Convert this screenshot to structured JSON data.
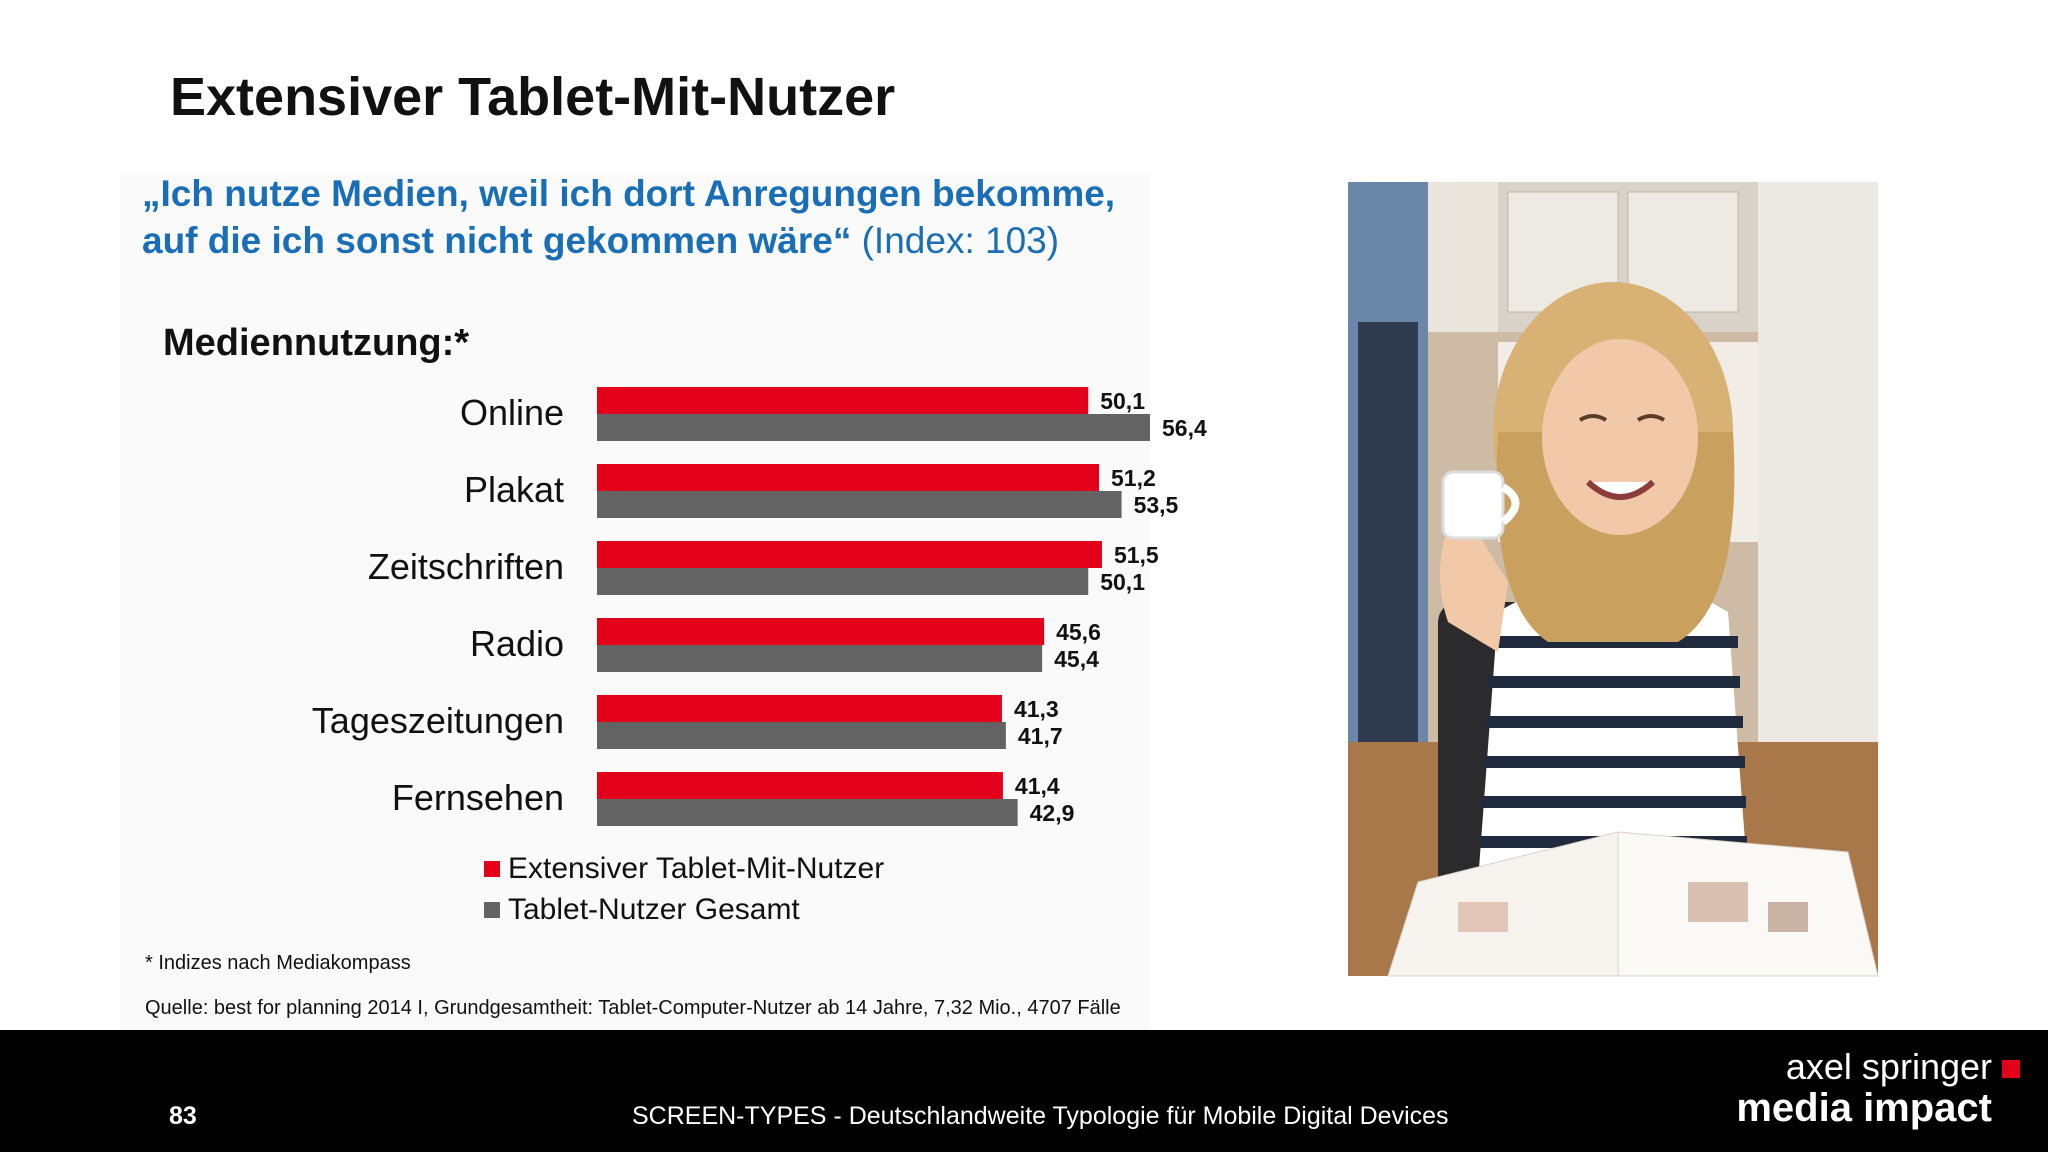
{
  "slide": {
    "title": "Extensiver Tablet-Mit-Nutzer",
    "quote_bold": "„Ich nutze Medien, weil ich dort Anregungen bekomme, auf die ich sonst nicht gekommen wäre“",
    "quote_bold_line1": "„Ich nutze Medien, weil ich dort Anregungen bekomme,",
    "quote_bold_line2": "auf die ich sonst nicht gekommen wäre“",
    "quote_index": "(Index: 103)",
    "section_title": "Mediennutzung:*",
    "footnote": "* Indizes nach Mediakompass",
    "source": "Quelle: best for planning 2014 I, Grundgesamtheit: Tablet-Computer-Nutzer ab 14 Jahre, 7,32 Mio., 4707 Fälle"
  },
  "footer": {
    "page_number": "83",
    "text": "SCREEN-TYPES - Deutschlandweite Typologie für Mobile Digital Devices",
    "logo_line1": "axel springer",
    "logo_line2": "media impact"
  },
  "colors": {
    "series1": "#e2001a",
    "series2": "#636363",
    "quote": "#1a6eb5",
    "footer_bg": "#000000"
  },
  "photo": {
    "description_icon": "photo-woman-reading-icon"
  },
  "chart_data": {
    "type": "bar",
    "orientation": "horizontal",
    "categories": [
      "Online",
      "Plakat",
      "Zeitschriften",
      "Radio",
      "Tageszeitungen",
      "Fernsehen"
    ],
    "series": [
      {
        "name": "Extensiver Tablet-Mit-Nutzer",
        "values": [
          50.1,
          51.2,
          51.5,
          45.6,
          41.3,
          41.4
        ],
        "labels": [
          "50,1",
          "51,2",
          "51,5",
          "45,6",
          "41,3",
          "41,4"
        ]
      },
      {
        "name": "Tablet-Nutzer Gesamt",
        "values": [
          56.4,
          53.5,
          50.1,
          45.4,
          41.7,
          42.9
        ],
        "labels": [
          "56,4",
          "53,5",
          "50,1",
          "45,4",
          "41,7",
          "42,9"
        ]
      }
    ],
    "xlim": [
      0,
      56.4
    ],
    "grid": false,
    "legend": "bottom"
  }
}
